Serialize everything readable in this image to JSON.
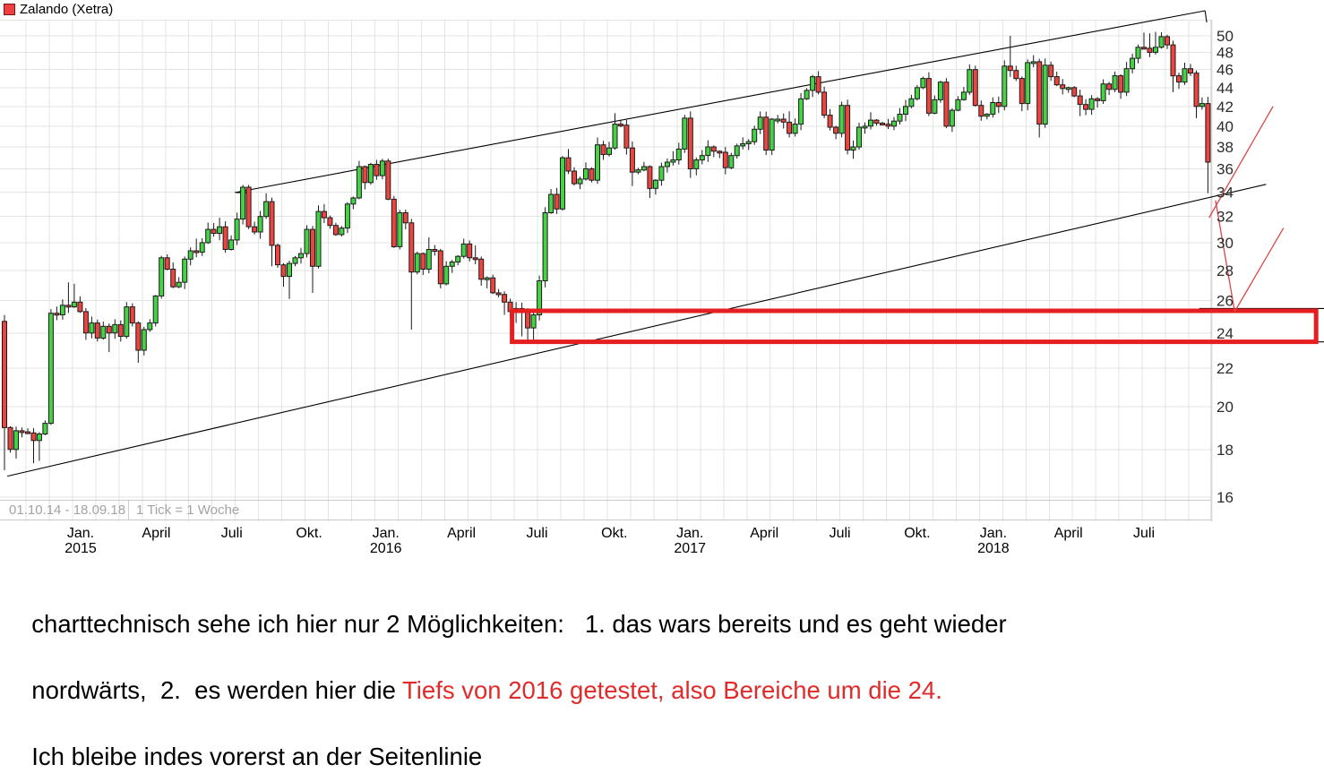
{
  "legend": {
    "label": "Zalando (Xetra)",
    "swatch_color": "#ee4040",
    "swatch_border": "#7c1414"
  },
  "footer": {
    "date_range": "01.10.14 - 18.09.18",
    "tick_info": "1 Tick = 1 Woche"
  },
  "annotation_text": {
    "line1": "charttechnisch sehe ich hier nur 2 Möglichkeiten:   1. das wars bereits und es geht wieder",
    "line2_black": "nordwärts,  2.  es werden hier die ",
    "line2_red": "Tiefs von 2016 getestet, also Bereiche um die 24.",
    "line3": "Ich bleibe indes vorerst an der Seitenlinie"
  },
  "chart_data": {
    "type": "candlestick",
    "instrument": "Zalando (Xetra)",
    "period": "01.10.14 - 18.09.18",
    "tick": "1 Tick = 1 Woche",
    "scale": "log",
    "ylim": [
      16,
      52
    ],
    "y_ticks": [
      50,
      48,
      46,
      44,
      42,
      40,
      38,
      36,
      34,
      32,
      30,
      28,
      26,
      24,
      22,
      20,
      18,
      16
    ],
    "x_ticks": [
      {
        "label": "Jan.",
        "year": "2015",
        "week": 13.1
      },
      {
        "label": "April",
        "week": 26.1
      },
      {
        "label": "Juli",
        "week": 39.1
      },
      {
        "label": "Okt.",
        "week": 52.4
      },
      {
        "label": "Jan.",
        "year": "2016",
        "week": 65.6
      },
      {
        "label": "April",
        "week": 78.6
      },
      {
        "label": "Juli",
        "week": 91.6
      },
      {
        "label": "Okt.",
        "week": 104.9
      },
      {
        "label": "Jan.",
        "year": "2017",
        "week": 117.9
      },
      {
        "label": "April",
        "week": 130.7
      },
      {
        "label": "Juli",
        "week": 143.7
      },
      {
        "label": "Okt.",
        "week": 157.0
      },
      {
        "label": "Jan.",
        "year": "2018",
        "week": 170.1
      },
      {
        "label": "April",
        "week": 183.0
      },
      {
        "label": "Juli",
        "week": 196.0
      }
    ],
    "first_open": 24.7,
    "closes": [
      19.0,
      18.0,
      18.85,
      18.8,
      18.75,
      18.4,
      18.7,
      19.2,
      25.2,
      25.1,
      25.7,
      25.6,
      25.9,
      25.3,
      24.0,
      24.6,
      23.7,
      24.4,
      24.0,
      24.5,
      23.8,
      25.6,
      24.6,
      23.0,
      24.2,
      24.6,
      26.3,
      28.9,
      28.1,
      26.9,
      27.2,
      28.8,
      29.4,
      29.3,
      30.0,
      31.0,
      30.7,
      31.2,
      29.5,
      30.2,
      31.8,
      34.4,
      31.2,
      30.8,
      32.0,
      33.2,
      29.8,
      28.4,
      27.6,
      28.5,
      28.9,
      29.2,
      31.0,
      28.3,
      32.4,
      31.9,
      31.3,
      30.6,
      31.1,
      33.0,
      33.5,
      36.2,
      34.8,
      36.4,
      35.4,
      36.7,
      33.4,
      29.7,
      32.3,
      31.5,
      27.9,
      29.2,
      28.1,
      29.5,
      29.4,
      27.1,
      28.3,
      28.6,
      29.0,
      29.9,
      28.9,
      28.8,
      27.4,
      27.5,
      26.5,
      26.4,
      25.9,
      25.3,
      25.5,
      25.4,
      24.3,
      25.1,
      27.3,
      32.3,
      33.8,
      32.6,
      37.0,
      35.8,
      34.7,
      35.1,
      36.0,
      35.0,
      38.2,
      37.3,
      37.9,
      40.2,
      40.1,
      37.9,
      35.7,
      35.9,
      36.2,
      34.3,
      35.0,
      36.2,
      36.6,
      36.8,
      37.8,
      40.8,
      36.0,
      36.8,
      37.2,
      38.0,
      37.6,
      37.5,
      36.1,
      37.2,
      38.1,
      38.3,
      38.5,
      39.7,
      40.9,
      37.7,
      40.7,
      40.7,
      40.4,
      39.3,
      40.2,
      42.8,
      43.7,
      45.2,
      43.5,
      41.1,
      39.9,
      39.3,
      42.1,
      37.7,
      38.0,
      39.9,
      40.0,
      40.6,
      40.3,
      40.2,
      40.0,
      40.5,
      41.2,
      42.0,
      42.8,
      44.0,
      45.0,
      41.3,
      42.7,
      44.6,
      40.0,
      41.6,
      42.7,
      43.5,
      46.0,
      42.1,
      41.0,
      41.2,
      42.4,
      42.0,
      46.4,
      45.9,
      45.0,
      42.3,
      46.8,
      46.9,
      40.2,
      46.5,
      45.2,
      44.3,
      43.9,
      44.0,
      43.1,
      42.2,
      41.7,
      42.8,
      42.6,
      44.4,
      43.8,
      45.3,
      43.5,
      46.1,
      47.3,
      48.6,
      48.5,
      48.0,
      48.6,
      49.9,
      48.9,
      45.3,
      44.6,
      46.1,
      45.6,
      42.0,
      42.3,
      36.6
    ],
    "wick_lows": {
      "0": 17.1,
      "2": 17.6,
      "5": 17.4,
      "6": 17.5,
      "14": 23.6,
      "18": 22.9,
      "23": 22.3,
      "46": 28.3,
      "48": 26.9,
      "49": 26.1,
      "53": 26.5,
      "70": 24.2,
      "75": 26.8,
      "83": 26.8,
      "86": 25.1,
      "88": 24.6,
      "89": 23.8,
      "90": 23.5,
      "91": 23.6,
      "108": 34.5,
      "111": 33.5,
      "118": 35.2,
      "135": 38.9,
      "141": 40.8,
      "145": 37.3,
      "146": 36.9,
      "159": 41.0,
      "162": 39.8,
      "175": 41.5,
      "178": 38.9,
      "185": 41.0,
      "201": 43.5,
      "205": 40.8,
      "207": 33.9
    },
    "wick_highs": {
      "11": 27.2,
      "12": 27.1,
      "33": 30.3,
      "37": 31.9,
      "41": 34.6,
      "45": 33.9,
      "55": 33.0,
      "64": 36.8,
      "65": 36.9,
      "73": 30.4,
      "81": 29.8,
      "97": 37.8,
      "102": 38.9,
      "105": 41.3,
      "115": 37.6,
      "135": 41.5,
      "139": 45.4,
      "144": 42.5,
      "149": 41.4,
      "158": 45.2,
      "166": 46.6,
      "173": 50.0,
      "196": 50.4,
      "197": 50.3,
      "198": 50.5
    },
    "colors": {
      "up": "#45d245",
      "down": "#ec443e",
      "candle_border": "#1a1a1a",
      "wick": "#1a1a1a",
      "grid": "#e3e3e3",
      "axis": "#c9c9c9",
      "channel": "#000000",
      "box": "#e51f1f",
      "scenario": "#dd4545",
      "y_label": "#2b2b2b",
      "x_label": "#000000"
    },
    "overlays": {
      "channel_upper": {
        "from": [
          39.6,
          33.95
        ],
        "to": [
          206.5,
          53.2
        ]
      },
      "channel_upper_start_tick": {
        "from": [
          39.9,
          33.95
        ],
        "to": [
          41.9,
          33.95
        ]
      },
      "channel_upper_end_tick": {
        "from": [
          206.5,
          53.2
        ],
        "to": [
          206.8,
          51.7
        ]
      },
      "channel_lower": {
        "from": [
          0.5,
          16.85
        ],
        "to": [
          217.0,
          34.65
        ]
      },
      "support_box": {
        "from_week": 87.3,
        "to_week": 225.6,
        "price_top": 25.35,
        "price_bottom": 23.48
      },
      "support_line_top": {
        "from": [
          205.5,
          25.5
        ],
        "to": [
          227.0,
          25.5
        ]
      },
      "support_line_bottom": {
        "from": [
          225.6,
          23.48
        ],
        "to": [
          227.0,
          23.48
        ]
      },
      "scenario_up": [
        [
          207.2,
          31.9
        ],
        [
          218.2,
          42.0
        ]
      ],
      "scenario_v": [
        [
          208.3,
          33.3
        ],
        [
          211.6,
          25.3
        ],
        [
          220.0,
          31.1
        ]
      ]
    }
  }
}
